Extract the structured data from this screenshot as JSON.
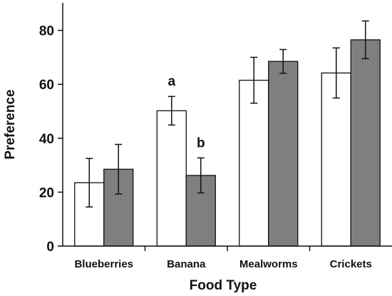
{
  "chart_data": {
    "type": "bar",
    "categories": [
      "Blueberries",
      "Banana",
      "Mealworms",
      "Crickets"
    ],
    "series": [
      {
        "fill": "#ffffff",
        "values": [
          23.5,
          50.2,
          61.5,
          64.2
        ],
        "error": [
          9.0,
          5.3,
          8.5,
          9.3
        ]
      },
      {
        "fill": "#7f7f7f",
        "values": [
          28.5,
          26.2,
          68.5,
          76.5
        ],
        "error": [
          9.2,
          6.5,
          4.4,
          7.0
        ]
      }
    ],
    "xlabel": "Food Type",
    "ylabel": "Preference",
    "ylim": [
      0,
      90
    ],
    "yticks": [
      0,
      20,
      40,
      60,
      80
    ],
    "grid": false,
    "annotations": [
      {
        "text": "a",
        "category": 1,
        "series": 0
      },
      {
        "text": "b",
        "category": 1,
        "series": 1
      }
    ]
  }
}
